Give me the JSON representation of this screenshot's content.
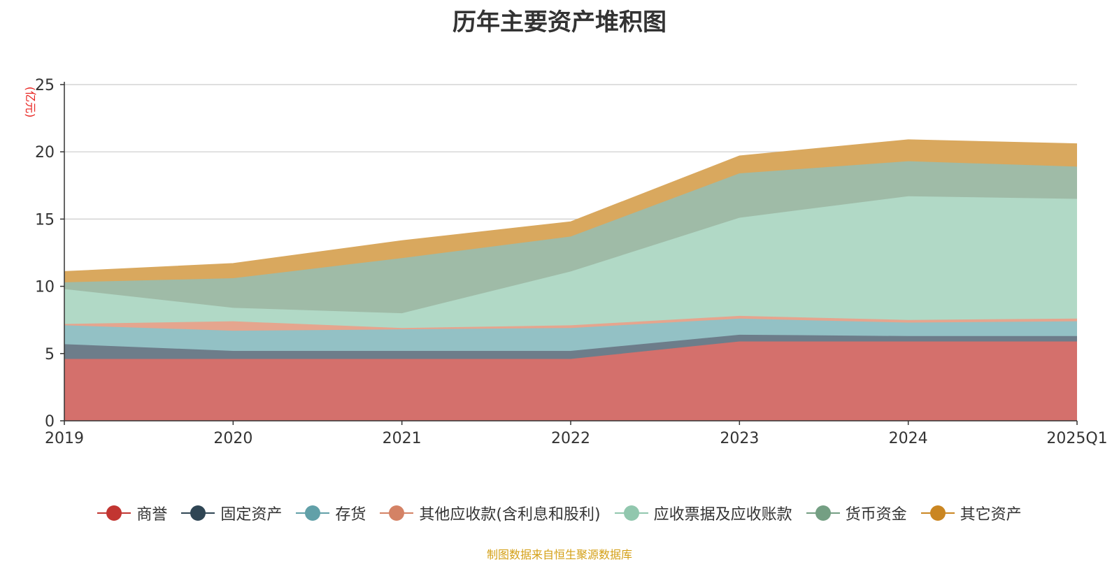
{
  "chart_data": {
    "type": "area",
    "stacked": true,
    "title": "历年主要资产堆积图",
    "ylabel": "(亿元)",
    "xlabel": "",
    "categories": [
      "2019",
      "2020",
      "2021",
      "2022",
      "2023",
      "2024",
      "2025Q1"
    ],
    "ylim": [
      0,
      25
    ],
    "yticks": [
      0,
      5,
      10,
      15,
      20,
      25
    ],
    "grid": true,
    "legend_position": "bottom",
    "series": [
      {
        "name": "商誉",
        "color": "#c23531",
        "area_color": "#d4706c",
        "values": [
          4.6,
          4.6,
          4.6,
          4.6,
          5.9,
          5.9,
          5.9
        ]
      },
      {
        "name": "固定资产",
        "color": "#2f4554",
        "area_color": "#6d7d8a",
        "values": [
          1.1,
          0.6,
          0.6,
          0.6,
          0.5,
          0.4,
          0.4
        ]
      },
      {
        "name": "存货",
        "color": "#61a0a8",
        "area_color": "#93c1c5",
        "values": [
          1.4,
          1.5,
          1.6,
          1.7,
          1.2,
          1.0,
          1.1
        ]
      },
      {
        "name": "其他应收款(含利息和股利)",
        "color": "#d48265",
        "area_color": "#e5a58e",
        "values": [
          0.1,
          0.7,
          0.1,
          0.2,
          0.2,
          0.2,
          0.2
        ]
      },
      {
        "name": "应收票据及应收账款",
        "color": "#91c7ae",
        "area_color": "#b1d9c6",
        "values": [
          2.6,
          1.0,
          1.1,
          4.0,
          7.3,
          9.2,
          8.9
        ]
      },
      {
        "name": "货币资金",
        "color": "#749f83",
        "area_color": "#9fbba7",
        "values": [
          0.5,
          2.2,
          4.1,
          2.6,
          3.3,
          2.6,
          2.4
        ]
      },
      {
        "name": "其它资产",
        "color": "#ca8622",
        "area_color": "#d9a85e",
        "values": [
          0.8,
          1.1,
          1.3,
          1.1,
          1.3,
          1.6,
          1.7
        ]
      }
    ]
  },
  "source_note": "制图数据来自恒生聚源数据库"
}
